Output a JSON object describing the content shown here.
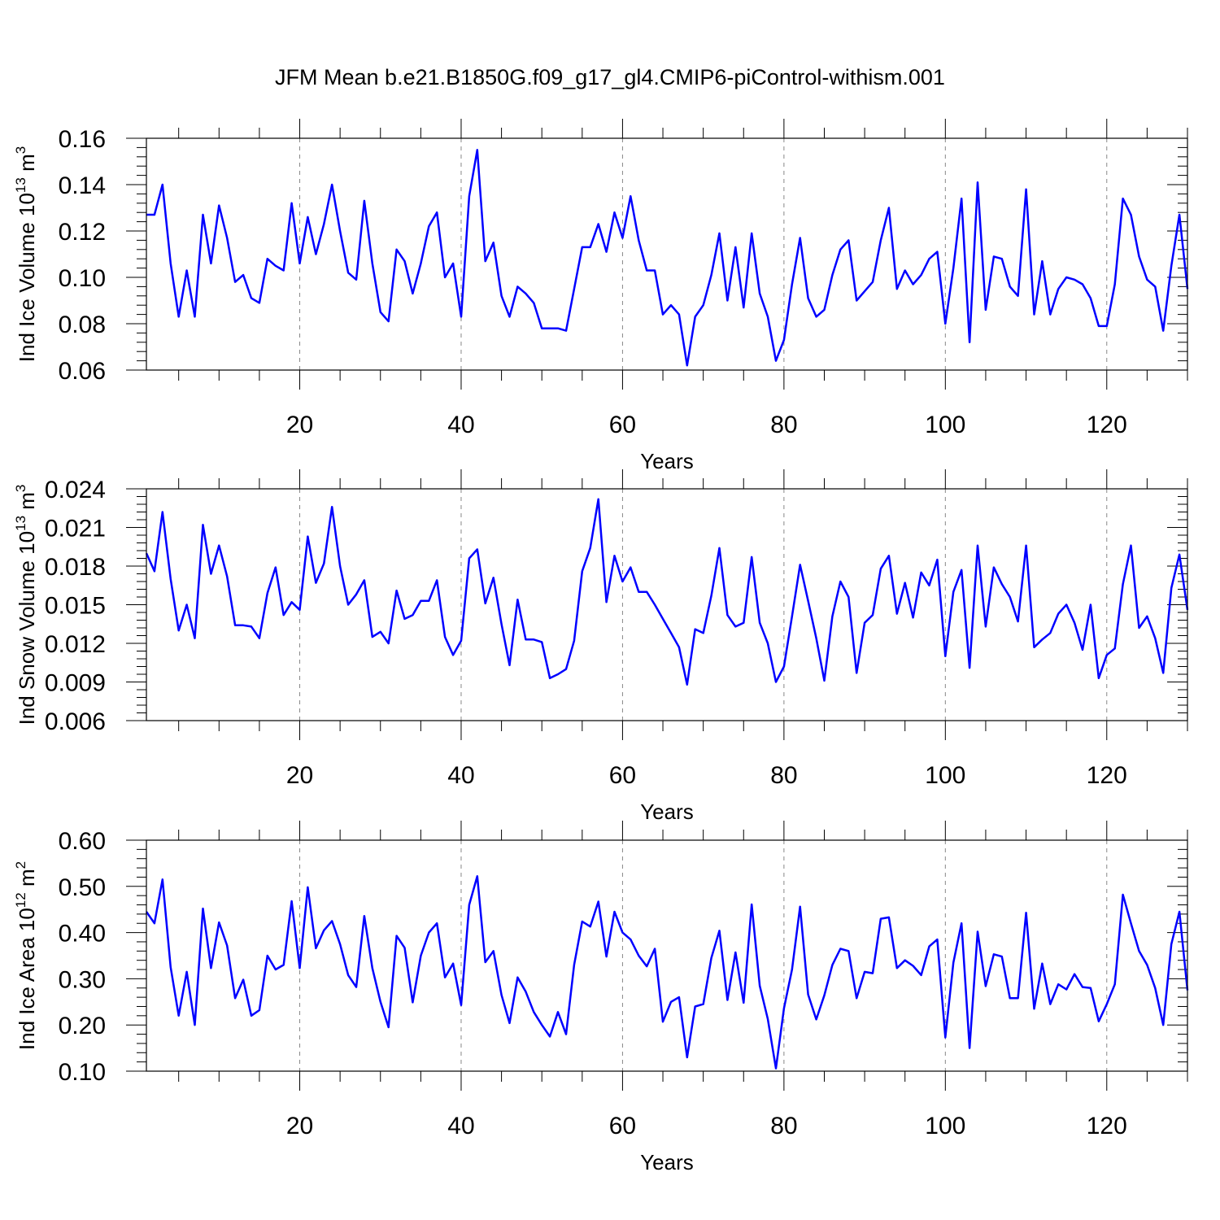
{
  "title": "JFM Mean b.e21.B1850G.f09_g17_gl4.CMIP6-piControl-withism.001",
  "line_color": "#0000ff",
  "chart_data": [
    {
      "type": "line",
      "ylabel": "Ind Ice Volume 10",
      "ylabel_exp": "13",
      "ylabel_unit": " m",
      "ylabel_unit_exp": "3",
      "xlabel": "Years",
      "xlim": [
        1,
        130
      ],
      "ylim": [
        0.06,
        0.16
      ],
      "x_ticks": [
        20,
        40,
        60,
        80,
        100,
        120
      ],
      "x_tick_labels": [
        "20",
        "40",
        "60",
        "80",
        "100",
        "120"
      ],
      "y_ticks": [
        0.06,
        0.08,
        0.1,
        0.12,
        0.14,
        0.16
      ],
      "y_tick_labels": [
        "0.06",
        "0.08",
        "0.10",
        "0.12",
        "0.14",
        "0.16"
      ],
      "grid": "vertical dashed at x ticks",
      "x": [
        1,
        2,
        3,
        4,
        5,
        6,
        7,
        8,
        9,
        10,
        11,
        12,
        13,
        14,
        15,
        16,
        17,
        18,
        19,
        20,
        21,
        22,
        23,
        24,
        25,
        26,
        27,
        28,
        29,
        30,
        31,
        32,
        33,
        34,
        35,
        36,
        37,
        38,
        39,
        40,
        41,
        42,
        43,
        44,
        45,
        46,
        47,
        48,
        49,
        50,
        51,
        52,
        53,
        54,
        55,
        56,
        57,
        58,
        59,
        60,
        61,
        62,
        63,
        64,
        65,
        66,
        67,
        68,
        69,
        70,
        71,
        72,
        73,
        74,
        75,
        76,
        77,
        78,
        79,
        80,
        81,
        82,
        83,
        84,
        85,
        86,
        87,
        88,
        89,
        90,
        91,
        92,
        93,
        94,
        95,
        96,
        97,
        98,
        99,
        100,
        101,
        102,
        103,
        104,
        105,
        106,
        107,
        108,
        109,
        110,
        111,
        112,
        113,
        114,
        115,
        116,
        117,
        118,
        119,
        120,
        121,
        122,
        123,
        124,
        125,
        126,
        127,
        128,
        129,
        130
      ],
      "values": [
        0.127,
        0.127,
        0.14,
        0.106,
        0.083,
        0.103,
        0.083,
        0.127,
        0.106,
        0.131,
        0.117,
        0.098,
        0.101,
        0.091,
        0.089,
        0.108,
        0.105,
        0.103,
        0.132,
        0.106,
        0.126,
        0.11,
        0.123,
        0.14,
        0.12,
        0.102,
        0.099,
        0.133,
        0.106,
        0.085,
        0.081,
        0.112,
        0.107,
        0.093,
        0.106,
        0.122,
        0.128,
        0.1,
        0.106,
        0.083,
        0.135,
        0.155,
        0.107,
        0.115,
        0.092,
        0.083,
        0.096,
        0.093,
        0.089,
        0.078,
        0.078,
        0.078,
        0.077,
        0.095,
        0.113,
        0.113,
        0.123,
        0.111,
        0.128,
        0.117,
        0.135,
        0.116,
        0.103,
        0.103,
        0.084,
        0.088,
        0.084,
        0.062,
        0.083,
        0.088,
        0.101,
        0.119,
        0.09,
        0.113,
        0.087,
        0.119,
        0.093,
        0.083,
        0.064,
        0.073,
        0.097,
        0.117,
        0.091,
        0.083,
        0.086,
        0.101,
        0.112,
        0.116,
        0.09,
        0.094,
        0.098,
        0.116,
        0.13,
        0.095,
        0.103,
        0.097,
        0.101,
        0.108,
        0.111,
        0.08,
        0.104,
        0.134,
        0.072,
        0.141,
        0.086,
        0.109,
        0.108,
        0.096,
        0.092,
        0.138,
        0.084,
        0.107,
        0.084,
        0.095,
        0.1,
        0.099,
        0.097,
        0.091,
        0.079,
        0.079,
        0.097,
        0.134,
        0.127,
        0.109,
        0.099,
        0.096,
        0.077,
        0.105,
        0.127,
        0.095
      ]
    },
    {
      "type": "line",
      "ylabel": "Ind Snow Volume 10",
      "ylabel_exp": "13",
      "ylabel_unit": " m",
      "ylabel_unit_exp": "3",
      "xlabel": "Years",
      "xlim": [
        1,
        130
      ],
      "ylim": [
        0.006,
        0.024
      ],
      "x_ticks": [
        20,
        40,
        60,
        80,
        100,
        120
      ],
      "x_tick_labels": [
        "20",
        "40",
        "60",
        "80",
        "100",
        "120"
      ],
      "y_ticks": [
        0.006,
        0.009,
        0.012,
        0.015,
        0.018,
        0.021,
        0.024
      ],
      "y_tick_labels": [
        "0.006",
        "0.009",
        "0.012",
        "0.015",
        "0.018",
        "0.021",
        "0.024"
      ],
      "grid": "vertical dashed at x ticks",
      "x": [
        1,
        2,
        3,
        4,
        5,
        6,
        7,
        8,
        9,
        10,
        11,
        12,
        13,
        14,
        15,
        16,
        17,
        18,
        19,
        20,
        21,
        22,
        23,
        24,
        25,
        26,
        27,
        28,
        29,
        30,
        31,
        32,
        33,
        34,
        35,
        36,
        37,
        38,
        39,
        40,
        41,
        42,
        43,
        44,
        45,
        46,
        47,
        48,
        49,
        50,
        51,
        52,
        53,
        54,
        55,
        56,
        57,
        58,
        59,
        60,
        61,
        62,
        63,
        64,
        65,
        66,
        67,
        68,
        69,
        70,
        71,
        72,
        73,
        74,
        75,
        76,
        77,
        78,
        79,
        80,
        81,
        82,
        83,
        84,
        85,
        86,
        87,
        88,
        89,
        90,
        91,
        92,
        93,
        94,
        95,
        96,
        97,
        98,
        99,
        100,
        101,
        102,
        103,
        104,
        105,
        106,
        107,
        108,
        109,
        110,
        111,
        112,
        113,
        114,
        115,
        116,
        117,
        118,
        119,
        120,
        121,
        122,
        123,
        124,
        125,
        126,
        127,
        128,
        129,
        130
      ],
      "values": [
        0.019,
        0.0176,
        0.0222,
        0.017,
        0.013,
        0.015,
        0.0124,
        0.0212,
        0.0174,
        0.0196,
        0.0172,
        0.0134,
        0.0134,
        0.0133,
        0.0124,
        0.0159,
        0.0179,
        0.0142,
        0.0152,
        0.0146,
        0.0203,
        0.0167,
        0.0182,
        0.0226,
        0.018,
        0.015,
        0.0158,
        0.0169,
        0.0125,
        0.0129,
        0.012,
        0.0161,
        0.0139,
        0.0142,
        0.0153,
        0.0153,
        0.0169,
        0.0125,
        0.0111,
        0.0122,
        0.0186,
        0.0193,
        0.0151,
        0.0171,
        0.0135,
        0.0103,
        0.0154,
        0.0123,
        0.0123,
        0.0121,
        0.0093,
        0.0096,
        0.01,
        0.0122,
        0.0176,
        0.0194,
        0.0232,
        0.0152,
        0.0188,
        0.0168,
        0.0179,
        0.016,
        0.016,
        0.015,
        0.0139,
        0.0128,
        0.0117,
        0.0088,
        0.0131,
        0.0128,
        0.0157,
        0.0194,
        0.0142,
        0.0133,
        0.0136,
        0.0187,
        0.0136,
        0.012,
        0.009,
        0.0102,
        0.0141,
        0.0181,
        0.0153,
        0.0124,
        0.0091,
        0.0141,
        0.0168,
        0.0156,
        0.0097,
        0.0136,
        0.0142,
        0.0178,
        0.0188,
        0.0143,
        0.0167,
        0.014,
        0.0175,
        0.0165,
        0.0185,
        0.011,
        0.016,
        0.0177,
        0.0101,
        0.0196,
        0.0133,
        0.0179,
        0.0166,
        0.0156,
        0.0137,
        0.0196,
        0.0117,
        0.0123,
        0.0128,
        0.0143,
        0.015,
        0.0136,
        0.0115,
        0.015,
        0.0093,
        0.0111,
        0.0116,
        0.0166,
        0.0196,
        0.0132,
        0.0141,
        0.0124,
        0.0097,
        0.0163,
        0.0189,
        0.0146
      ]
    },
    {
      "type": "line",
      "ylabel": "Ind Ice Area 10",
      "ylabel_exp": "12",
      "ylabel_unit": " m",
      "ylabel_unit_exp": "2",
      "xlabel": "Years",
      "xlim": [
        1,
        130
      ],
      "ylim": [
        0.1,
        0.6
      ],
      "x_ticks": [
        20,
        40,
        60,
        80,
        100,
        120
      ],
      "x_tick_labels": [
        "20",
        "40",
        "60",
        "80",
        "100",
        "120"
      ],
      "y_ticks": [
        0.1,
        0.2,
        0.3,
        0.4,
        0.5,
        0.6
      ],
      "y_tick_labels": [
        "0.10",
        "0.20",
        "0.30",
        "0.40",
        "0.50",
        "0.60"
      ],
      "grid": "vertical dashed at x ticks",
      "x": [
        1,
        2,
        3,
        4,
        5,
        6,
        7,
        8,
        9,
        10,
        11,
        12,
        13,
        14,
        15,
        16,
        17,
        18,
        19,
        20,
        21,
        22,
        23,
        24,
        25,
        26,
        27,
        28,
        29,
        30,
        31,
        32,
        33,
        34,
        35,
        36,
        37,
        38,
        39,
        40,
        41,
        42,
        43,
        44,
        45,
        46,
        47,
        48,
        49,
        50,
        51,
        52,
        53,
        54,
        55,
        56,
        57,
        58,
        59,
        60,
        61,
        62,
        63,
        64,
        65,
        66,
        67,
        68,
        69,
        70,
        71,
        72,
        73,
        74,
        75,
        76,
        77,
        78,
        79,
        80,
        81,
        82,
        83,
        84,
        85,
        86,
        87,
        88,
        89,
        90,
        91,
        92,
        93,
        94,
        95,
        96,
        97,
        98,
        99,
        100,
        101,
        102,
        103,
        104,
        105,
        106,
        107,
        108,
        109,
        110,
        111,
        112,
        113,
        114,
        115,
        116,
        117,
        118,
        119,
        120,
        121,
        122,
        123,
        124,
        125,
        126,
        127,
        128,
        129,
        130
      ],
      "values": [
        0.445,
        0.42,
        0.515,
        0.325,
        0.22,
        0.315,
        0.2,
        0.452,
        0.323,
        0.422,
        0.372,
        0.258,
        0.298,
        0.22,
        0.232,
        0.35,
        0.32,
        0.33,
        0.468,
        0.323,
        0.498,
        0.366,
        0.405,
        0.425,
        0.375,
        0.308,
        0.282,
        0.436,
        0.323,
        0.25,
        0.195,
        0.393,
        0.367,
        0.249,
        0.35,
        0.4,
        0.42,
        0.303,
        0.333,
        0.243,
        0.46,
        0.522,
        0.336,
        0.36,
        0.265,
        0.204,
        0.303,
        0.272,
        0.228,
        0.2,
        0.175,
        0.228,
        0.18,
        0.33,
        0.424,
        0.413,
        0.467,
        0.348,
        0.445,
        0.4,
        0.385,
        0.35,
        0.327,
        0.365,
        0.207,
        0.25,
        0.26,
        0.13,
        0.24,
        0.245,
        0.345,
        0.404,
        0.254,
        0.357,
        0.248,
        0.461,
        0.285,
        0.213,
        0.106,
        0.236,
        0.32,
        0.456,
        0.266,
        0.212,
        0.264,
        0.33,
        0.365,
        0.36,
        0.258,
        0.315,
        0.312,
        0.43,
        0.433,
        0.323,
        0.34,
        0.328,
        0.308,
        0.37,
        0.385,
        0.173,
        0.335,
        0.42,
        0.15,
        0.402,
        0.284,
        0.353,
        0.348,
        0.258,
        0.258,
        0.443,
        0.235,
        0.333,
        0.245,
        0.288,
        0.277,
        0.31,
        0.282,
        0.28,
        0.208,
        0.245,
        0.288,
        0.482,
        0.42,
        0.36,
        0.33,
        0.28,
        0.2,
        0.375,
        0.445,
        0.275
      ]
    }
  ]
}
